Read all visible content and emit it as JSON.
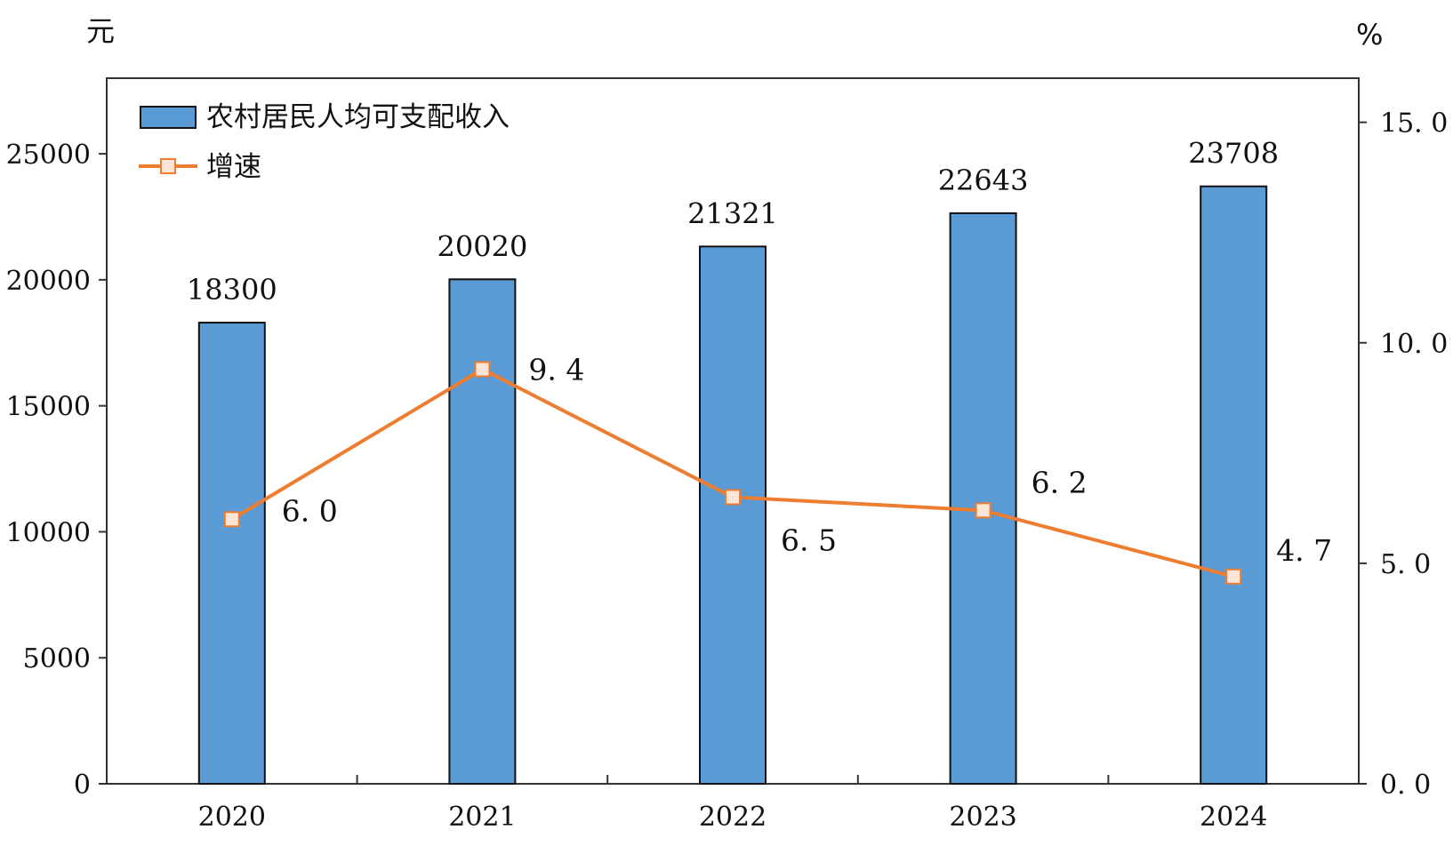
{
  "chart_data": {
    "type": "bar",
    "categories": [
      "2020",
      "2021",
      "2022",
      "2023",
      "2024"
    ],
    "series": [
      {
        "name": "农村居民人均可支配收入",
        "type": "bar",
        "axis": "left",
        "values": [
          18300,
          20020,
          21321,
          22643,
          23708
        ],
        "labels": [
          "18300",
          "20020",
          "21321",
          "22643",
          "23708"
        ]
      },
      {
        "name": "增速",
        "type": "line",
        "axis": "right",
        "values": [
          6.0,
          9.4,
          6.5,
          6.2,
          4.7
        ],
        "labels": [
          "6. 0",
          "9. 4",
          "6. 5",
          "6. 2",
          "4. 7"
        ]
      }
    ],
    "y_left": {
      "unit": "元",
      "range": [
        0,
        28000
      ],
      "ticks": [
        0,
        5000,
        10000,
        15000,
        20000,
        25000
      ],
      "tick_labels": [
        "0",
        "5000",
        "10000",
        "15000",
        "20000",
        "25000"
      ]
    },
    "y_right": {
      "unit": "%",
      "range": [
        0,
        16
      ],
      "ticks": [
        0,
        5,
        10,
        15
      ],
      "tick_labels": [
        "0. 0",
        "5. 0",
        "10. 0",
        "15. 0"
      ]
    },
    "grid": false,
    "legend": "top-left",
    "colors": {
      "bar_fill": "#5b9bd5",
      "bar_stroke": "#111111",
      "line": "#ed7d31",
      "marker_fill": "#fbe5d6",
      "axis": "#333333"
    }
  }
}
